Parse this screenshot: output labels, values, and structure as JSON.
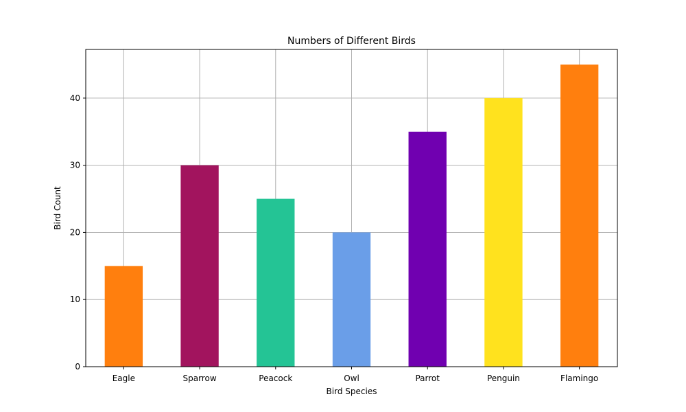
{
  "chart_data": {
    "type": "bar",
    "title": "Numbers of Different Birds",
    "xlabel": "Bird Species",
    "ylabel": "Bird Count",
    "categories": [
      "Eagle",
      "Sparrow",
      "Peacock",
      "Owl",
      "Parrot",
      "Penguin",
      "Flamingo"
    ],
    "values": [
      15,
      30,
      25,
      20,
      35,
      40,
      45
    ],
    "colors": [
      "#ff7f0e",
      "#a2145e",
      "#24c495",
      "#6a9ee8",
      "#7000b0",
      "#ffe21e",
      "#ff7f0e"
    ],
    "ylim": [
      0,
      47.25
    ],
    "yticks": [
      0,
      10,
      20,
      30,
      40
    ],
    "grid": true,
    "grid_color": "#b0b0b0"
  }
}
